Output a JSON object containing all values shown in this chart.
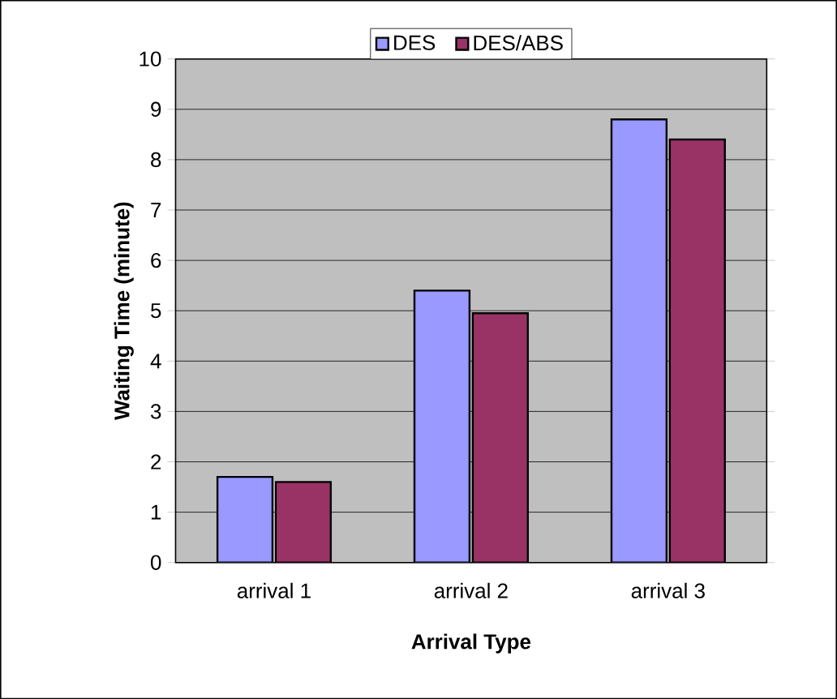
{
  "chart_data": {
    "type": "bar",
    "xlabel": "Arrival Type",
    "ylabel": "Waiting Time (minute)",
    "categories": [
      "arrival 1",
      "arrival 2",
      "arrival 3"
    ],
    "series": [
      {
        "name": "DES",
        "color": "#9999ff",
        "values": [
          1.7,
          5.4,
          8.8
        ]
      },
      {
        "name": "DES/ABS",
        "color": "#993366",
        "values": [
          1.6,
          4.95,
          8.4
        ]
      }
    ],
    "ylim": [
      0,
      10
    ],
    "yticks": [
      0,
      1,
      2,
      3,
      4,
      5,
      6,
      7,
      8,
      9,
      10
    ],
    "grid": "y",
    "legend": "top"
  }
}
